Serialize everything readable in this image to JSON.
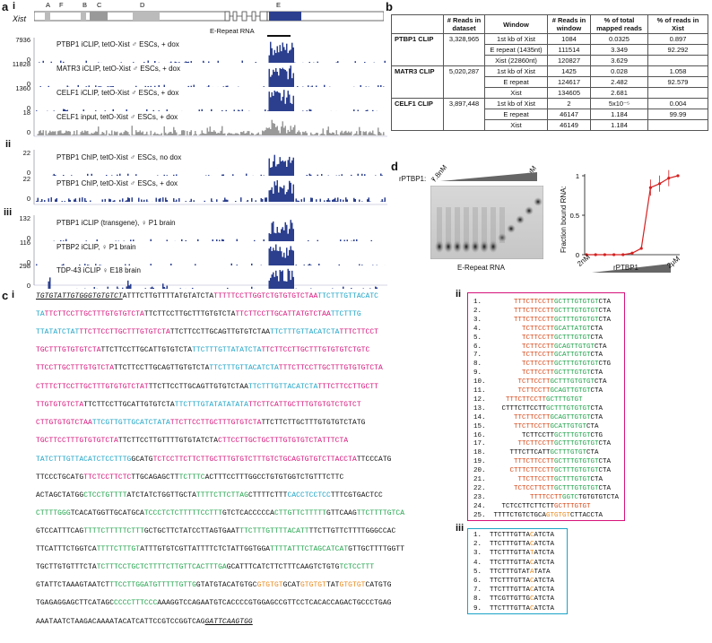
{
  "panel_a": {
    "letter": "a",
    "sub_i": "i",
    "sub_ii": "ii",
    "sub_iii": "iii",
    "gene": "Xist",
    "regions": [
      "A",
      "F",
      "B",
      "C",
      "D",
      "E"
    ],
    "erepeat_label": "E-Repeat RNA",
    "tracks_i": [
      {
        "label": "PTBP1 iCLIP, tetO-Xist ♂ ESCs, + dox",
        "ymax": "7936",
        "ymin": "0",
        "color": "#2b3f8e"
      },
      {
        "label": "MATR3 iCLIP, tetO-Xist ♂ ESCs, + dox",
        "ymax": "11828",
        "ymin": "0",
        "color": "#2b3f8e"
      },
      {
        "label": "CELF1 iCLIP, tetO-Xist ♂ ESCs, + dox",
        "ymax": "1360",
        "ymin": "0",
        "color": "#2b3f8e"
      },
      {
        "label": "CELF1 input, tetO-Xist ♂ ESCs, + dox",
        "ymax": "18",
        "ymin": "0",
        "color": "#999999"
      }
    ],
    "tracks_ii": [
      {
        "label": "PTBP1 ChIP, tetO-Xist ♂ ESCs, no dox",
        "ymax": "22",
        "ymin": "0",
        "color": "#2b3f8e"
      },
      {
        "label": "PTBP1 ChIP, tetO-Xist ♂ ESCs, + dox",
        "ymax": "22",
        "ymin": "0",
        "color": "#2b3f8e"
      }
    ],
    "tracks_iii": [
      {
        "label": "PTBP1 iCLIP (transgene), ♀ P1 brain",
        "ymax": "132",
        "ymin": "0",
        "color": "#2b3f8e"
      },
      {
        "label": "PTBP2 iCLIP, ♀ P1 brain",
        "ymax": "116",
        "ymin": "0",
        "color": "#2b3f8e"
      },
      {
        "label": "TDP-43 iCLIP ♀ E18 brain",
        "ymax": "298",
        "ymin": "0",
        "color": "#2b3f8e"
      }
    ]
  },
  "panel_b": {
    "letter": "b",
    "headers": [
      "",
      "# Reads in dataset",
      "Window",
      "# Reads in window",
      "% of total mapped reads",
      "% of reads in Xist"
    ],
    "rows": [
      [
        "PTBP1 CLIP",
        "3,328,965",
        "1st kb of Xist",
        "1084",
        "0.0325",
        "0.897"
      ],
      [
        "",
        "",
        "E repeat (1435nt)",
        "111514",
        "3.349",
        "92.292"
      ],
      [
        "",
        "",
        "Xist (22860nt)",
        "120827",
        "3.629",
        ""
      ],
      [
        "MATR3 CLIP",
        "5,020,287",
        "1st kb of Xist",
        "1425",
        "0.028",
        "1.058"
      ],
      [
        "",
        "",
        "E repeat",
        "124617",
        "2.482",
        "92.579"
      ],
      [
        "",
        "",
        "Xist",
        "134605",
        "2.681",
        ""
      ],
      [
        "CELF1 CLIP",
        "3,897,448",
        "1st kb of Xist",
        "2",
        "5x10⁻⁵",
        "0.004"
      ],
      [
        "",
        "",
        "E repeat",
        "46147",
        "1.184",
        "99.99"
      ],
      [
        "",
        "",
        "Xist",
        "46149",
        "1.184",
        ""
      ]
    ]
  },
  "panel_d": {
    "letter": "d",
    "protein_label": "rPTBP1:",
    "minus": "-",
    "low": "7.8nM",
    "high": "2μM",
    "gel_caption": "E-Repeat RNA",
    "chart_ylabel": "Fraction bound RNA:",
    "chart_xlabel": "rPTBP1",
    "chart_x_low": "2nM",
    "chart_x_high": "2μM",
    "chart_y_ticks": [
      "0",
      "0.5",
      "1"
    ]
  },
  "chart_data": {
    "type": "line",
    "title": "",
    "xlabel": "rPTBP1",
    "ylabel": "Fraction bound RNA:",
    "x": [
      1,
      2,
      3,
      4,
      5,
      6,
      7,
      8,
      9,
      10,
      11
    ],
    "values": [
      0,
      0,
      0,
      0,
      0,
      0.02,
      0.08,
      0.85,
      0.9,
      0.97,
      1.0
    ],
    "ylim": [
      0,
      1
    ]
  },
  "panel_c": {
    "letter": "c",
    "sub_i": "i",
    "sub_ii": "ii",
    "sub_iii": "iii"
  },
  "colors": {
    "ptb_motif": "#d6127a",
    "cu_motif": "#1ba3c6",
    "other_motif": "#1fa24a",
    "gu_motif": "#e8891a",
    "track_blue": "#2b3f8e",
    "box_ii": "#d6127a",
    "box_iii": "#1ba3c6"
  }
}
